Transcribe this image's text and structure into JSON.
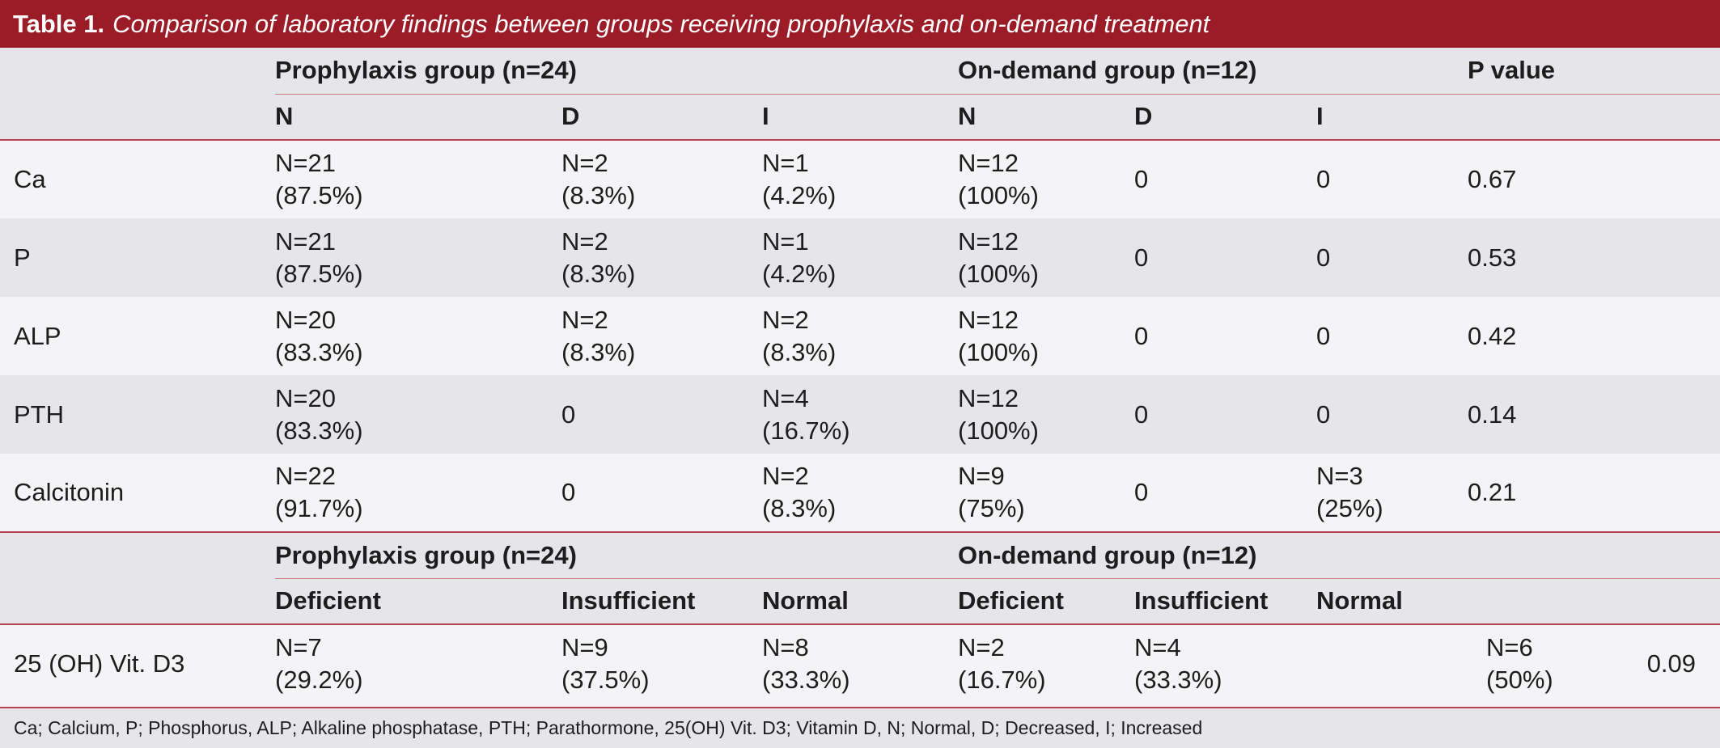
{
  "title": {
    "label": "Table 1.",
    "caption": "Comparison of laboratory findings between groups receiving prophylaxis and on-demand treatment"
  },
  "header1": {
    "prophylaxis": "Prophylaxis group (n=24)",
    "ondemand": "On-demand group (n=12)",
    "pvalue": "P value"
  },
  "header2": [
    "N",
    "D",
    "I",
    "N",
    "D",
    "I"
  ],
  "rows": [
    {
      "name": "Ca",
      "cells": [
        "N=21\n(87.5%)",
        "N=2\n(8.3%)",
        "N=1\n(4.2%)",
        "N=12\n(100%)",
        "0",
        "0"
      ],
      "p": "0.67"
    },
    {
      "name": "P",
      "cells": [
        "N=21\n(87.5%)",
        "N=2\n(8.3%)",
        "N=1\n(4.2%)",
        "N=12\n(100%)",
        "0",
        "0"
      ],
      "p": "0.53"
    },
    {
      "name": "ALP",
      "cells": [
        "N=20\n(83.3%)",
        "N=2\n(8.3%)",
        "N=2\n(8.3%)",
        "N=12\n(100%)",
        "0",
        "0"
      ],
      "p": "0.42"
    },
    {
      "name": "PTH",
      "cells": [
        "N=20\n(83.3%)",
        "0",
        "N=4\n(16.7%)",
        "N=12\n(100%)",
        "0",
        "0"
      ],
      "p": "0.14"
    },
    {
      "name": "Calcitonin",
      "cells": [
        "N=22\n(91.7%)",
        "0",
        "N=2\n(8.3%)",
        "N=9\n(75%)",
        "0",
        "N=3\n(25%)"
      ],
      "p": "0.21"
    }
  ],
  "header3": {
    "prophylaxis": "Prophylaxis group (n=24)",
    "ondemand": "On-demand group (n=12)"
  },
  "header4": [
    "Deficient",
    "Insufficient",
    "Normal",
    "Deficient",
    "Insufficient",
    "Normal"
  ],
  "vit_row": {
    "name": "25 (OH) Vit. D3",
    "cells": [
      "N=7\n(29.2%)",
      "N=9\n(37.5%)",
      "N=8\n(33.3%)",
      "N=2\n(16.7%)",
      "N=4\n(33.3%)",
      "N=6\n(50%)"
    ],
    "p": "0.09"
  },
  "footnote": "Ca; Calcium, P; Phosphorus, ALP; Alkaline phosphatase, PTH; Parathormone, 25(OH) Vit. D3; Vitamin D, N; Normal, D; Decreased, I; Increased"
}
